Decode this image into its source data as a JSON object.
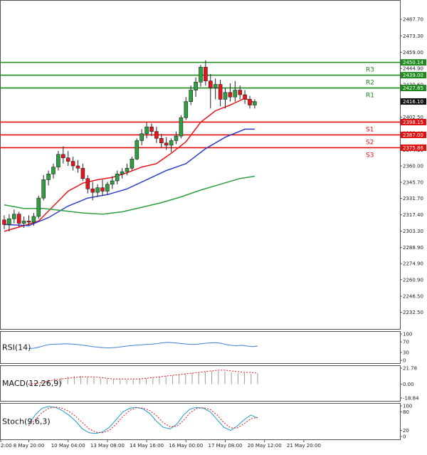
{
  "chart_data": {
    "type": "candlestick",
    "price_axis": {
      "ylim": [
        2218.0,
        2502.0
      ],
      "ticks": [
        "2487.70",
        "2473.30",
        "2459.00",
        "2444.90",
        "2430.60",
        "2416.10",
        "2402.50",
        "2388.40",
        "2374.10",
        "2360.00",
        "2345.70",
        "2331.70",
        "2317.40",
        "2303.30",
        "2288.90",
        "2274.90",
        "2260.90",
        "2246.50",
        "2232.50"
      ],
      "current_price": "2416.10"
    },
    "x_axis": {
      "tick_labels": [
        {
          "i": 0,
          "label": "2:00"
        },
        {
          "i": 5,
          "label": "8 May 20:00"
        },
        {
          "i": 13,
          "label": "10 May 04:00"
        },
        {
          "i": 21,
          "label": "13 May 08:00"
        },
        {
          "i": 29,
          "label": "14 May 16:00"
        },
        {
          "i": 37,
          "label": "16 May 00:00"
        },
        {
          "i": 45,
          "label": "17 May 08:00"
        },
        {
          "i": 53,
          "label": "20 May 12:00"
        },
        {
          "i": 61,
          "label": "21 May 20:00"
        }
      ]
    },
    "candles": [
      {
        "o": 2313,
        "h": 2317,
        "l": 2305,
        "c": 2309
      },
      {
        "o": 2309,
        "h": 2318,
        "l": 2303,
        "c": 2314
      },
      {
        "o": 2314,
        "h": 2322,
        "l": 2310,
        "c": 2318
      },
      {
        "o": 2318,
        "h": 2320,
        "l": 2307,
        "c": 2310
      },
      {
        "o": 2310,
        "h": 2316,
        "l": 2306,
        "c": 2312
      },
      {
        "o": 2312,
        "h": 2317,
        "l": 2308,
        "c": 2311
      },
      {
        "o": 2311,
        "h": 2319,
        "l": 2308,
        "c": 2316
      },
      {
        "o": 2316,
        "h": 2334,
        "l": 2314,
        "c": 2332
      },
      {
        "o": 2332,
        "h": 2352,
        "l": 2330,
        "c": 2348
      },
      {
        "o": 2348,
        "h": 2356,
        "l": 2343,
        "c": 2353
      },
      {
        "o": 2353,
        "h": 2362,
        "l": 2349,
        "c": 2359
      },
      {
        "o": 2359,
        "h": 2373,
        "l": 2356,
        "c": 2370
      },
      {
        "o": 2370,
        "h": 2377,
        "l": 2362,
        "c": 2367
      },
      {
        "o": 2367,
        "h": 2373,
        "l": 2360,
        "c": 2364
      },
      {
        "o": 2364,
        "h": 2368,
        "l": 2356,
        "c": 2360
      },
      {
        "o": 2360,
        "h": 2365,
        "l": 2354,
        "c": 2358
      },
      {
        "o": 2358,
        "h": 2362,
        "l": 2347,
        "c": 2349
      },
      {
        "o": 2349,
        "h": 2352,
        "l": 2336,
        "c": 2340
      },
      {
        "o": 2340,
        "h": 2346,
        "l": 2330,
        "c": 2337
      },
      {
        "o": 2337,
        "h": 2344,
        "l": 2333,
        "c": 2341
      },
      {
        "o": 2341,
        "h": 2348,
        "l": 2334,
        "c": 2338
      },
      {
        "o": 2338,
        "h": 2346,
        "l": 2335,
        "c": 2344
      },
      {
        "o": 2344,
        "h": 2351,
        "l": 2340,
        "c": 2347
      },
      {
        "o": 2347,
        "h": 2356,
        "l": 2344,
        "c": 2353
      },
      {
        "o": 2353,
        "h": 2358,
        "l": 2349,
        "c": 2355
      },
      {
        "o": 2355,
        "h": 2362,
        "l": 2352,
        "c": 2358
      },
      {
        "o": 2358,
        "h": 2368,
        "l": 2356,
        "c": 2366
      },
      {
        "o": 2366,
        "h": 2384,
        "l": 2365,
        "c": 2382
      },
      {
        "o": 2382,
        "h": 2392,
        "l": 2378,
        "c": 2388
      },
      {
        "o": 2388,
        "h": 2398,
        "l": 2384,
        "c": 2394
      },
      {
        "o": 2394,
        "h": 2397,
        "l": 2386,
        "c": 2390
      },
      {
        "o": 2390,
        "h": 2394,
        "l": 2380,
        "c": 2384
      },
      {
        "o": 2384,
        "h": 2388,
        "l": 2376,
        "c": 2380
      },
      {
        "o": 2380,
        "h": 2385,
        "l": 2374,
        "c": 2378
      },
      {
        "o": 2378,
        "h": 2384,
        "l": 2372,
        "c": 2382
      },
      {
        "o": 2382,
        "h": 2390,
        "l": 2379,
        "c": 2386
      },
      {
        "o": 2386,
        "h": 2404,
        "l": 2384,
        "c": 2402
      },
      {
        "o": 2402,
        "h": 2420,
        "l": 2400,
        "c": 2416
      },
      {
        "o": 2416,
        "h": 2430,
        "l": 2413,
        "c": 2426
      },
      {
        "o": 2426,
        "h": 2437,
        "l": 2420,
        "c": 2433
      },
      {
        "o": 2433,
        "h": 2448,
        "l": 2429,
        "c": 2446
      },
      {
        "o": 2446,
        "h": 2452,
        "l": 2430,
        "c": 2434
      },
      {
        "o": 2434,
        "h": 2440,
        "l": 2410,
        "c": 2428
      },
      {
        "o": 2428,
        "h": 2436,
        "l": 2418,
        "c": 2431
      },
      {
        "o": 2431,
        "h": 2435,
        "l": 2412,
        "c": 2418
      },
      {
        "o": 2418,
        "h": 2428,
        "l": 2410,
        "c": 2424
      },
      {
        "o": 2424,
        "h": 2432,
        "l": 2416,
        "c": 2420
      },
      {
        "o": 2420,
        "h": 2434,
        "l": 2416,
        "c": 2426
      },
      {
        "o": 2426,
        "h": 2430,
        "l": 2418,
        "c": 2422
      },
      {
        "o": 2422,
        "h": 2426,
        "l": 2414,
        "c": 2418
      },
      {
        "o": 2418,
        "h": 2421,
        "l": 2410,
        "c": 2413
      },
      {
        "o": 2413,
        "h": 2418,
        "l": 2410,
        "c": 2416
      }
    ],
    "moving_averages": [
      {
        "color": "#e8141b",
        "points": [
          [
            0,
            2303
          ],
          [
            4,
            2308
          ],
          [
            7,
            2312
          ],
          [
            10,
            2325
          ],
          [
            13,
            2338
          ],
          [
            16,
            2345
          ],
          [
            19,
            2348
          ],
          [
            22,
            2350
          ],
          [
            25,
            2354
          ],
          [
            28,
            2359
          ],
          [
            31,
            2362
          ],
          [
            34,
            2371
          ],
          [
            37,
            2381
          ],
          [
            40,
            2398
          ],
          [
            43,
            2408
          ],
          [
            46,
            2413
          ],
          [
            49,
            2419
          ],
          [
            51,
            2415
          ]
        ]
      },
      {
        "color": "#2d3ec8",
        "points": [
          [
            0,
            2309
          ],
          [
            5,
            2308
          ],
          [
            9,
            2315
          ],
          [
            13,
            2325
          ],
          [
            17,
            2332
          ],
          [
            21,
            2335
          ],
          [
            25,
            2340
          ],
          [
            29,
            2348
          ],
          [
            33,
            2356
          ],
          [
            37,
            2362
          ],
          [
            41,
            2375
          ],
          [
            45,
            2385
          ],
          [
            49,
            2392
          ],
          [
            51,
            2392
          ]
        ]
      },
      {
        "color": "#2e9e3f",
        "points": [
          [
            0,
            2326
          ],
          [
            4,
            2323
          ],
          [
            8,
            2323
          ],
          [
            12,
            2321
          ],
          [
            16,
            2319
          ],
          [
            20,
            2318
          ],
          [
            24,
            2320
          ],
          [
            28,
            2324
          ],
          [
            32,
            2328
          ],
          [
            36,
            2333
          ],
          [
            40,
            2339
          ],
          [
            44,
            2344
          ],
          [
            48,
            2349
          ],
          [
            51,
            2351
          ]
        ]
      }
    ],
    "levels": [
      {
        "name": "R3",
        "value": 2450.14,
        "label": "2450.14",
        "color": "#1e8a1e"
      },
      {
        "name": "R2",
        "value": 2439.0,
        "label": "2439.00",
        "color": "#1e8a1e"
      },
      {
        "name": "R1",
        "value": 2427.85,
        "label": "2427.85",
        "color": "#1e8a1e"
      },
      {
        "name": "S1",
        "value": 2398.15,
        "label": "2398.15",
        "color": "#e01010"
      },
      {
        "name": "S2",
        "value": 2387.0,
        "label": "2387.00",
        "color": "#e01010"
      },
      {
        "name": "S3",
        "value": 2375.86,
        "label": "2375.86",
        "color": "#e01010"
      }
    ],
    "indicators": [
      {
        "name": "RSI(14)",
        "ticks": [
          "100",
          "70",
          "30",
          "0"
        ],
        "tick_values": [
          100,
          70,
          30,
          0
        ],
        "range": [
          0,
          100
        ],
        "line_color": "#3e7fd6",
        "values": [
          45,
          46,
          50,
          56,
          60,
          61,
          62,
          63,
          62,
          60,
          58,
          55,
          52,
          50,
          48,
          47,
          48,
          50,
          53,
          55,
          57,
          58,
          60,
          61,
          63,
          66,
          68,
          67,
          65,
          63,
          61,
          60,
          62,
          64,
          66,
          67,
          65,
          60,
          57,
          55,
          57,
          54,
          52,
          54
        ]
      },
      {
        "name": "MACD(12,26,9)",
        "ticks": [
          "21.78",
          "0.00",
          "-18.84"
        ],
        "tick_values": [
          21.78,
          0,
          -18.84
        ],
        "range": [
          -18.84,
          21.78
        ],
        "histogram": [
          1,
          2,
          4,
          6,
          8,
          9,
          10,
          11,
          11,
          10,
          9,
          8,
          7,
          6,
          6,
          6,
          6,
          7,
          8,
          9,
          10,
          11,
          12,
          13,
          14,
          15,
          16,
          17,
          18,
          18,
          17,
          16,
          15,
          15,
          14,
          15
        ],
        "signal": [
          0,
          1,
          2,
          4,
          6,
          7,
          8,
          9,
          10,
          10,
          10,
          9,
          8,
          7,
          7,
          7,
          7,
          7,
          8,
          9,
          10,
          11,
          12,
          13,
          14,
          15,
          16,
          17,
          18,
          19,
          19,
          18,
          17,
          16,
          16,
          15
        ],
        "histogram_color": "#9a9a9a",
        "signal_color": "#e8141b"
      },
      {
        "name": "Stoch(9,6,3)",
        "ticks": [
          "100",
          "80",
          "20",
          "0"
        ],
        "tick_values": [
          100,
          80,
          20,
          0
        ],
        "range": [
          0,
          100
        ],
        "k": [
          40,
          70,
          92,
          98,
          95,
          85,
          70,
          50,
          25,
          12,
          10,
          15,
          30,
          55,
          80,
          92,
          95,
          90,
          75,
          50,
          30,
          25,
          40,
          70,
          90,
          95,
          92,
          80,
          55,
          30,
          20,
          35,
          55,
          70,
          60
        ],
        "d": [
          35,
          55,
          78,
          92,
          96,
          92,
          82,
          66,
          45,
          25,
          14,
          12,
          20,
          40,
          65,
          85,
          94,
          93,
          85,
          68,
          45,
          32,
          33,
          52,
          78,
          92,
          94,
          88,
          70,
          45,
          28,
          28,
          42,
          58,
          62
        ],
        "k_color": "#1a9ccc",
        "d_color": "#e8141b"
      }
    ]
  }
}
